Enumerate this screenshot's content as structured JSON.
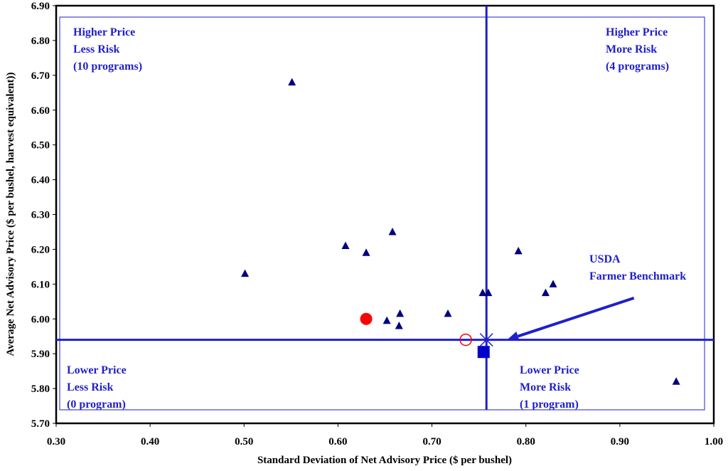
{
  "chart_data": {
    "type": "scatter",
    "xlabel": "Standard Deviation of Net Advisory Price ($ per bushel)",
    "ylabel": "Average Net Advisory Price ($ per bushel, harvest equivalent))",
    "xlim": [
      0.3,
      1.0
    ],
    "ylim": [
      5.7,
      6.9
    ],
    "x_ticks": [
      "0.30",
      "0.40",
      "0.50",
      "0.60",
      "0.70",
      "0.80",
      "0.90",
      "1.00"
    ],
    "y_ticks": [
      "5.70",
      "5.80",
      "5.90",
      "6.00",
      "6.10",
      "6.20",
      "6.30",
      "6.40",
      "6.50",
      "6.60",
      "6.70",
      "6.80",
      "6.90"
    ],
    "grid": false,
    "reference_lines": {
      "x": 0.758,
      "y": 5.94
    },
    "series": [
      {
        "marker": "triangle",
        "color": "#000080",
        "points": [
          {
            "x": 0.551,
            "y": 6.68
          },
          {
            "x": 0.501,
            "y": 6.13
          },
          {
            "x": 0.608,
            "y": 6.21
          },
          {
            "x": 0.63,
            "y": 6.19
          },
          {
            "x": 0.658,
            "y": 6.25
          },
          {
            "x": 0.652,
            "y": 5.995
          },
          {
            "x": 0.666,
            "y": 6.015
          },
          {
            "x": 0.665,
            "y": 5.98
          },
          {
            "x": 0.717,
            "y": 6.015
          },
          {
            "x": 0.754,
            "y": 6.075
          },
          {
            "x": 0.76,
            "y": 6.075
          },
          {
            "x": 0.792,
            "y": 6.195
          },
          {
            "x": 0.821,
            "y": 6.075
          },
          {
            "x": 0.829,
            "y": 6.1
          },
          {
            "x": 0.96,
            "y": 5.82
          }
        ]
      },
      {
        "marker": "circle-filled",
        "color": "#ff0000",
        "points": [
          {
            "x": 0.63,
            "y": 6.0
          }
        ]
      },
      {
        "marker": "circle-open",
        "color": "#ff0000",
        "points": [
          {
            "x": 0.736,
            "y": 5.94
          }
        ]
      },
      {
        "marker": "square",
        "color": "#0000cc",
        "points": [
          {
            "x": 0.755,
            "y": 5.905
          }
        ]
      },
      {
        "marker": "star",
        "color": "#1f1fcc",
        "points": [
          {
            "x": 0.758,
            "y": 5.94
          }
        ]
      }
    ],
    "annotations": [
      {
        "id": "ul",
        "lines": [
          "Higher Price",
          "Less Risk",
          "(10 programs)"
        ]
      },
      {
        "id": "ur",
        "lines": [
          "Higher Price",
          "More Risk",
          "(4 programs)"
        ]
      },
      {
        "id": "ll",
        "lines": [
          "Lower Price",
          "Less Risk",
          "(0 program)"
        ]
      },
      {
        "id": "lr",
        "lines": [
          "Lower Price",
          "More Risk",
          "(1 program)"
        ]
      },
      {
        "id": "usda",
        "lines": [
          "USDA",
          "Farmer Benchmark"
        ],
        "arrow_from": {
          "x": 0.915,
          "y": 6.06
        },
        "arrow_to": {
          "x": 0.78,
          "y": 5.94
        }
      }
    ]
  }
}
